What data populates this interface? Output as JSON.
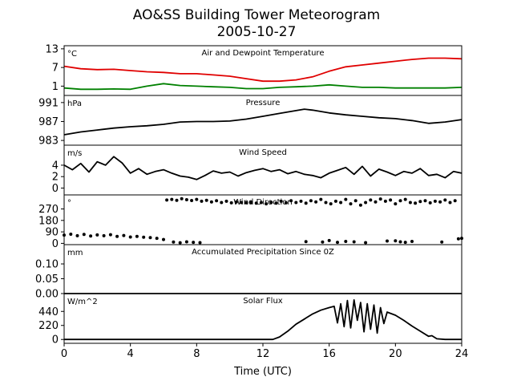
{
  "figure": {
    "title_line1": "AO&SS Building Tower Meteorogram",
    "title_line2": "2005-10-27",
    "xlabel": "Time (UTC)",
    "x_ticks": [
      0,
      4,
      8,
      12,
      16,
      20,
      24
    ],
    "xlim": [
      0,
      24
    ]
  },
  "chart_data": [
    {
      "type": "line",
      "panel": "temperature",
      "title": "Air and Dewpoint Temperature",
      "unit": "°C",
      "ylim": [
        -2,
        14
      ],
      "y_ticks": [
        1,
        7,
        13
      ],
      "series": [
        {
          "color": "#e00000",
          "x": [
            0,
            1,
            2,
            3,
            4,
            5,
            6,
            7,
            8,
            9,
            10,
            11,
            12,
            13,
            14,
            15,
            16,
            17,
            18,
            19,
            20,
            21,
            22,
            23,
            24
          ],
          "y": [
            7.4,
            6.6,
            6.3,
            6.4,
            6.0,
            5.6,
            5.4,
            5.0,
            5.0,
            4.6,
            4.2,
            3.4,
            2.6,
            2.6,
            3.0,
            4.0,
            5.8,
            7.2,
            7.8,
            8.4,
            9.0,
            9.6,
            10.0,
            10.0,
            9.8
          ]
        },
        {
          "color": "#008000",
          "x": [
            0,
            1,
            2,
            3,
            4,
            5,
            6,
            7,
            8,
            9,
            10,
            11,
            12,
            13,
            14,
            15,
            16,
            17,
            18,
            19,
            20,
            21,
            22,
            23,
            24
          ],
          "y": [
            0.4,
            0.0,
            0.0,
            0.1,
            0.0,
            1.0,
            1.8,
            1.2,
            1.0,
            0.8,
            0.6,
            0.2,
            0.2,
            0.6,
            0.8,
            1.0,
            1.4,
            1.0,
            0.6,
            0.6,
            0.4,
            0.4,
            0.4,
            0.4,
            0.6
          ]
        }
      ]
    },
    {
      "type": "line",
      "panel": "pressure",
      "title": "Pressure",
      "unit": "hPa",
      "ylim": [
        982,
        992.5
      ],
      "y_ticks": [
        983,
        987,
        991
      ],
      "series": [
        {
          "color": "#000000",
          "x": [
            0,
            1,
            2,
            3,
            4,
            5,
            6,
            7,
            8,
            9,
            10,
            11,
            12,
            13,
            14,
            14.5,
            15,
            16,
            17,
            18,
            19,
            20,
            21,
            22,
            23,
            24
          ],
          "y": [
            984.2,
            984.8,
            985.2,
            985.6,
            985.9,
            986.1,
            986.4,
            986.9,
            987.0,
            987.0,
            987.1,
            987.5,
            988.1,
            988.7,
            989.3,
            989.6,
            989.4,
            988.8,
            988.4,
            988.1,
            987.8,
            987.6,
            987.2,
            986.6,
            986.9,
            987.4
          ]
        }
      ]
    },
    {
      "type": "line",
      "panel": "wind-speed",
      "title": "Wind Speed",
      "unit": "m/s",
      "ylim": [
        -1.2,
        7.5
      ],
      "y_ticks": [
        0,
        2,
        4
      ],
      "series": [
        {
          "color": "#000000",
          "x": [
            0,
            0.5,
            1,
            1.5,
            2,
            2.5,
            3,
            3.5,
            4,
            4.5,
            5,
            5.5,
            6,
            6.5,
            7,
            7.5,
            8,
            8.5,
            9,
            9.5,
            10,
            10.5,
            11,
            11.5,
            12,
            12.5,
            13,
            13.5,
            14,
            14.5,
            15,
            15.5,
            16,
            16.5,
            17,
            17.5,
            18,
            18.5,
            19,
            19.5,
            20,
            20.5,
            21,
            21.5,
            22,
            22.5,
            23,
            23.5,
            24
          ],
          "y": [
            4.0,
            3.2,
            4.3,
            2.8,
            4.6,
            4.0,
            5.5,
            4.4,
            2.6,
            3.4,
            2.4,
            2.9,
            3.2,
            2.6,
            2.1,
            1.9,
            1.5,
            2.2,
            3.0,
            2.6,
            2.8,
            2.1,
            2.7,
            3.1,
            3.4,
            2.9,
            3.2,
            2.5,
            2.9,
            2.4,
            2.2,
            1.8,
            2.6,
            3.1,
            3.6,
            2.4,
            3.8,
            2.1,
            3.3,
            2.8,
            2.2,
            2.9,
            2.6,
            3.4,
            2.2,
            2.4,
            1.8,
            2.9,
            2.6
          ]
        }
      ]
    },
    {
      "type": "scatter",
      "panel": "wind-direction",
      "title": "Wind Direction",
      "unit": "°",
      "ylim": [
        -10,
        380
      ],
      "y_ticks": [
        0,
        90,
        180,
        270
      ],
      "series": [
        {
          "color": "#000000",
          "x": [
            0,
            0.4,
            0.8,
            1.2,
            1.6,
            2,
            2.4,
            2.8,
            3.2,
            3.6,
            4,
            4.4,
            4.8,
            5.2,
            5.6,
            6,
            6.2,
            6.5,
            6.8,
            7.1,
            7.4,
            7.7,
            8,
            8.3,
            8.6,
            8.9,
            9.2,
            9.5,
            9.8,
            10.1,
            10.4,
            10.7,
            11,
            11.3,
            11.6,
            11.9,
            12.2,
            12.5,
            12.8,
            13.1,
            13.4,
            13.7,
            14,
            14.3,
            14.6,
            14.9,
            15.2,
            15.5,
            15.8,
            16.1,
            16.4,
            16.7,
            17,
            17.3,
            17.6,
            17.9,
            18.2,
            18.5,
            18.8,
            19.1,
            19.4,
            19.7,
            20,
            20.3,
            20.6,
            20.9,
            21.2,
            21.5,
            21.8,
            22.1,
            22.4,
            22.7,
            23,
            23.3,
            23.6,
            6.6,
            7.0,
            7.4,
            7.8,
            8.2,
            14.6,
            15.6,
            16.0,
            16.5,
            17.0,
            17.5,
            18.2,
            19.5,
            20.0,
            20.3,
            20.6,
            21.0,
            22.8,
            23.8,
            24.0
          ],
          "y": [
            65,
            72,
            60,
            70,
            58,
            66,
            60,
            68,
            55,
            62,
            50,
            55,
            48,
            45,
            40,
            30,
            340,
            345,
            338,
            350,
            342,
            336,
            345,
            330,
            338,
            325,
            335,
            320,
            330,
            318,
            325,
            320,
            318,
            322,
            315,
            320,
            310,
            322,
            315,
            330,
            318,
            335,
            320,
            330,
            315,
            335,
            325,
            345,
            320,
            310,
            330,
            320,
            345,
            310,
            335,
            300,
            320,
            340,
            325,
            348,
            330,
            340,
            310,
            335,
            345,
            320,
            315,
            328,
            335,
            318,
            330,
            325,
            340,
            320,
            335,
            10,
            5,
            12,
            8,
            6,
            14,
            10,
            22,
            8,
            15,
            12,
            6,
            18,
            20,
            12,
            8,
            15,
            10,
            35,
            40
          ]
        }
      ]
    },
    {
      "type": "line",
      "panel": "precipitation",
      "title": "Accumulated Precipitation Since 0Z",
      "unit": "mm",
      "ylim": [
        0,
        0.165
      ],
      "y_ticks": [
        0.0,
        0.05,
        0.1
      ],
      "series": [
        {
          "color": "#000000",
          "x": [
            0,
            24
          ],
          "y": [
            0,
            0
          ]
        }
      ]
    },
    {
      "type": "line",
      "panel": "solar-flux",
      "title": "Solar Flux",
      "unit": "W/m^2",
      "ylim": [
        -60,
        720
      ],
      "y_ticks": [
        0,
        220,
        440
      ],
      "series": [
        {
          "color": "#000000",
          "x": [
            0,
            12.6,
            13,
            13.5,
            14,
            14.5,
            15,
            15.5,
            16,
            16.3,
            16.5,
            16.7,
            16.9,
            17.1,
            17.3,
            17.5,
            17.7,
            17.9,
            18.1,
            18.3,
            18.5,
            18.7,
            18.9,
            19.1,
            19.3,
            19.5,
            20,
            20.5,
            21,
            21.5,
            22,
            22.2,
            22.5,
            23,
            24
          ],
          "y": [
            0,
            0,
            40,
            130,
            240,
            320,
            400,
            460,
            500,
            520,
            260,
            560,
            200,
            610,
            180,
            620,
            300,
            580,
            120,
            560,
            160,
            540,
            100,
            500,
            250,
            430,
            380,
            300,
            210,
            130,
            50,
            60,
            10,
            0,
            0
          ]
        }
      ]
    }
  ]
}
